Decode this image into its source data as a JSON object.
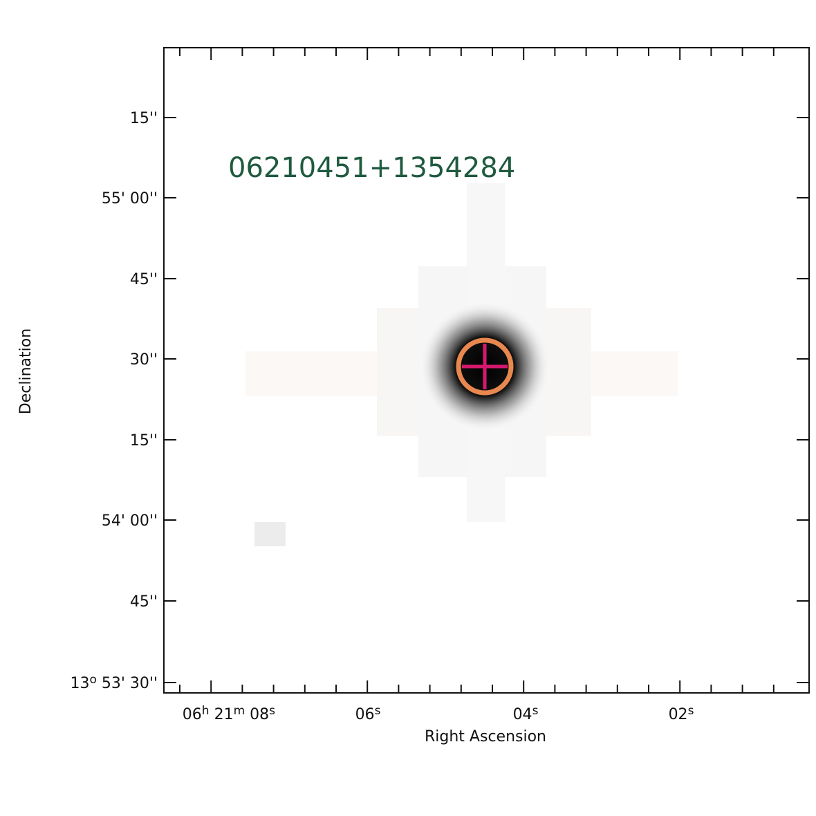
{
  "image": {
    "source_label": "06210451+1354284"
  },
  "axes": {
    "x_label": "Right Ascension",
    "y_label": "Declination",
    "x_tick_labels": [
      [
        "06",
        "h",
        " 21",
        "m",
        " 08",
        "s"
      ],
      [
        "06",
        "s"
      ],
      [
        "04",
        "s"
      ],
      [
        "02",
        "s"
      ]
    ],
    "y_tick_labels": [
      [
        "15''"
      ],
      [
        "55' 00''"
      ],
      [
        "45''"
      ],
      [
        "30''"
      ],
      [
        "15''"
      ],
      [
        "54' 00''"
      ],
      [
        "45''"
      ],
      [
        "13",
        "o",
        " 53' 30''"
      ]
    ]
  }
}
